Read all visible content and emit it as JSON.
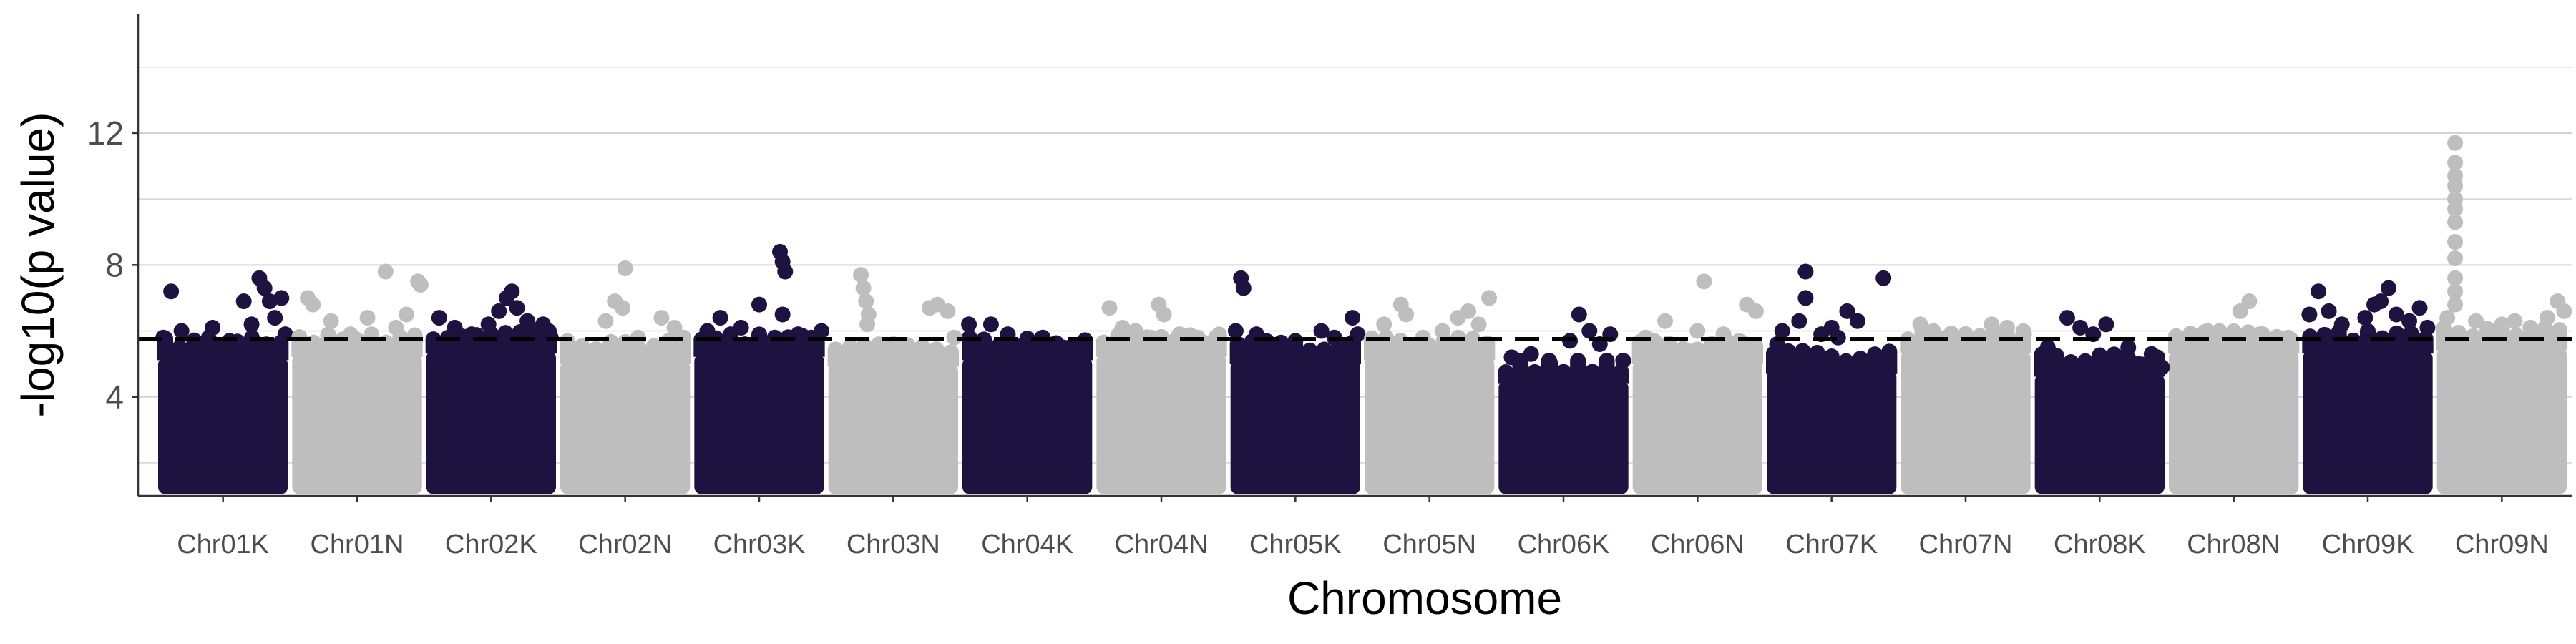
{
  "chart_data": {
    "type": "scatter",
    "title": "",
    "xlabel": "Chromosome",
    "ylabel": "-log10(p value)",
    "ylim": [
      1,
      15.6
    ],
    "yticks": [
      4,
      8,
      12
    ],
    "grid": true,
    "legend": "none",
    "threshold": 5.75,
    "colors": {
      "dark": "#1e1340",
      "light": "#bebebe",
      "threshold": "#000000"
    },
    "categories": [
      "Chr01K",
      "Chr01N",
      "Chr02K",
      "Chr02N",
      "Chr03K",
      "Chr03N",
      "Chr04K",
      "Chr04N",
      "Chr05K",
      "Chr05N",
      "Chr06K",
      "Chr06N",
      "Chr07K",
      "Chr07N",
      "Chr08K",
      "Chr08N",
      "Chr09K",
      "Chr09N"
    ],
    "series": [
      {
        "category": "Chr01K",
        "color": "dark",
        "band_top": 5.2,
        "points": [
          [
            0.04,
            5.8
          ],
          [
            0.1,
            7.2
          ],
          [
            0.18,
            6.0
          ],
          [
            0.3,
            5.6
          ],
          [
            0.42,
            6.1
          ],
          [
            0.55,
            5.7
          ],
          [
            0.66,
            6.9
          ],
          [
            0.72,
            6.2
          ],
          [
            0.78,
            7.6
          ],
          [
            0.82,
            7.3
          ],
          [
            0.86,
            6.9
          ],
          [
            0.9,
            6.4
          ],
          [
            0.95,
            7.0
          ],
          [
            0.98,
            5.9
          ]
        ]
      },
      {
        "category": "Chr01N",
        "color": "light",
        "band_top": 5.3,
        "points": [
          [
            0.12,
            7.0
          ],
          [
            0.16,
            6.8
          ],
          [
            0.3,
            6.3
          ],
          [
            0.45,
            5.9
          ],
          [
            0.58,
            6.4
          ],
          [
            0.72,
            7.8
          ],
          [
            0.8,
            6.1
          ],
          [
            0.88,
            6.5
          ],
          [
            0.97,
            7.5
          ],
          [
            0.99,
            7.4
          ]
        ]
      },
      {
        "category": "Chr02K",
        "color": "dark",
        "band_top": 5.4,
        "points": [
          [
            0.1,
            6.4
          ],
          [
            0.22,
            6.1
          ],
          [
            0.35,
            5.9
          ],
          [
            0.48,
            6.2
          ],
          [
            0.56,
            6.6
          ],
          [
            0.62,
            7.0
          ],
          [
            0.66,
            7.2
          ],
          [
            0.7,
            6.7
          ],
          [
            0.78,
            6.3
          ],
          [
            0.9,
            6.2
          ],
          [
            0.96,
            5.8
          ]
        ]
      },
      {
        "category": "Chr02N",
        "color": "light",
        "band_top": 5.1,
        "points": [
          [
            0.35,
            6.3
          ],
          [
            0.42,
            6.9
          ],
          [
            0.48,
            6.7
          ],
          [
            0.5,
            7.9
          ],
          [
            0.6,
            5.8
          ],
          [
            0.78,
            6.4
          ],
          [
            0.88,
            6.1
          ],
          [
            0.95,
            5.8
          ]
        ]
      },
      {
        "category": "Chr03K",
        "color": "dark",
        "band_top": 5.3,
        "points": [
          [
            0.1,
            6.0
          ],
          [
            0.2,
            6.4
          ],
          [
            0.28,
            5.9
          ],
          [
            0.36,
            6.1
          ],
          [
            0.5,
            6.8
          ],
          [
            0.62,
            5.8
          ],
          [
            0.66,
            8.4
          ],
          [
            0.68,
            8.1
          ],
          [
            0.7,
            7.8
          ],
          [
            0.68,
            6.5
          ],
          [
            0.8,
            5.9
          ],
          [
            0.9,
            5.8
          ],
          [
            0.98,
            6.0
          ]
        ]
      },
      {
        "category": "Chr03N",
        "color": "light",
        "band_top": 5.0,
        "points": [
          [
            0.25,
            7.7
          ],
          [
            0.27,
            7.3
          ],
          [
            0.29,
            6.9
          ],
          [
            0.31,
            6.5
          ],
          [
            0.3,
            6.2
          ],
          [
            0.5,
            5.4
          ],
          [
            0.78,
            6.7
          ],
          [
            0.84,
            6.8
          ],
          [
            0.92,
            6.6
          ],
          [
            0.97,
            5.8
          ]
        ]
      },
      {
        "category": "Chr04K",
        "color": "dark",
        "band_top": 5.2,
        "points": [
          [
            0.05,
            6.2
          ],
          [
            0.22,
            6.2
          ],
          [
            0.35,
            5.9
          ],
          [
            0.48,
            5.6
          ],
          [
            0.62,
            5.8
          ],
          [
            0.78,
            5.5
          ],
          [
            0.92,
            5.6
          ]
        ]
      },
      {
        "category": "Chr04N",
        "color": "light",
        "band_top": 5.3,
        "points": [
          [
            0.1,
            6.7
          ],
          [
            0.2,
            6.1
          ],
          [
            0.3,
            6.0
          ],
          [
            0.42,
            5.8
          ],
          [
            0.48,
            6.8
          ],
          [
            0.52,
            6.5
          ],
          [
            0.64,
            5.9
          ],
          [
            0.78,
            5.8
          ],
          [
            0.92,
            5.8
          ]
        ]
      },
      {
        "category": "Chr05K",
        "color": "dark",
        "band_top": 5.1,
        "points": [
          [
            0.08,
            7.6
          ],
          [
            0.1,
            7.3
          ],
          [
            0.04,
            6.0
          ],
          [
            0.2,
            5.9
          ],
          [
            0.3,
            5.5
          ],
          [
            0.5,
            5.7
          ],
          [
            0.7,
            6.0
          ],
          [
            0.8,
            5.8
          ],
          [
            0.94,
            6.4
          ],
          [
            0.98,
            5.9
          ]
        ]
      },
      {
        "category": "Chr05N",
        "color": "light",
        "band_top": 5.2,
        "points": [
          [
            0.15,
            6.2
          ],
          [
            0.28,
            6.8
          ],
          [
            0.32,
            6.5
          ],
          [
            0.45,
            5.8
          ],
          [
            0.6,
            6.0
          ],
          [
            0.72,
            6.4
          ],
          [
            0.8,
            6.6
          ],
          [
            0.88,
            6.2
          ],
          [
            0.96,
            7.0
          ]
        ]
      },
      {
        "category": "Chr06K",
        "color": "dark",
        "band_top": 4.5,
        "points": [
          [
            0.1,
            5.2
          ],
          [
            0.25,
            5.3
          ],
          [
            0.4,
            5.0
          ],
          [
            0.55,
            5.7
          ],
          [
            0.62,
            6.5
          ],
          [
            0.7,
            6.0
          ],
          [
            0.78,
            5.6
          ],
          [
            0.86,
            5.9
          ],
          [
            0.96,
            5.1
          ]
        ]
      },
      {
        "category": "Chr06N",
        "color": "light",
        "band_top": 5.1,
        "points": [
          [
            0.1,
            5.8
          ],
          [
            0.25,
            6.3
          ],
          [
            0.42,
            5.4
          ],
          [
            0.5,
            6.0
          ],
          [
            0.55,
            7.5
          ],
          [
            0.7,
            5.9
          ],
          [
            0.82,
            5.7
          ],
          [
            0.88,
            6.8
          ],
          [
            0.95,
            6.6
          ]
        ]
      },
      {
        "category": "Chr07K",
        "color": "dark",
        "band_top": 4.8,
        "points": [
          [
            0.08,
            5.6
          ],
          [
            0.12,
            6.0
          ],
          [
            0.25,
            6.3
          ],
          [
            0.3,
            7.0
          ],
          [
            0.3,
            7.8
          ],
          [
            0.42,
            5.9
          ],
          [
            0.5,
            6.1
          ],
          [
            0.55,
            5.8
          ],
          [
            0.62,
            6.6
          ],
          [
            0.7,
            6.3
          ],
          [
            0.9,
            7.6
          ]
        ]
      },
      {
        "category": "Chr07N",
        "color": "light",
        "band_top": 5.4,
        "points": [
          [
            0.15,
            6.2
          ],
          [
            0.25,
            6.0
          ],
          [
            0.35,
            5.8
          ],
          [
            0.5,
            5.8
          ],
          [
            0.7,
            6.2
          ],
          [
            0.82,
            6.1
          ],
          [
            0.95,
            5.9
          ]
        ]
      },
      {
        "category": "Chr08K",
        "color": "dark",
        "band_top": 4.7,
        "points": [
          [
            0.1,
            5.5
          ],
          [
            0.25,
            6.4
          ],
          [
            0.35,
            6.1
          ],
          [
            0.45,
            5.9
          ],
          [
            0.55,
            6.2
          ],
          [
            0.65,
            5.2
          ],
          [
            0.72,
            5.5
          ],
          [
            0.8,
            5.0
          ],
          [
            0.9,
            5.3
          ],
          [
            0.98,
            4.9
          ]
        ]
      },
      {
        "category": "Chr08N",
        "color": "light",
        "band_top": 5.4,
        "points": [
          [
            0.2,
            5.8
          ],
          [
            0.3,
            6.0
          ],
          [
            0.55,
            6.6
          ],
          [
            0.62,
            6.9
          ],
          [
            0.7,
            5.9
          ],
          [
            0.8,
            5.7
          ],
          [
            0.92,
            5.8
          ]
        ]
      },
      {
        "category": "Chr09K",
        "color": "dark",
        "band_top": 5.4,
        "points": [
          [
            0.05,
            6.5
          ],
          [
            0.12,
            7.2
          ],
          [
            0.2,
            6.6
          ],
          [
            0.3,
            6.2
          ],
          [
            0.48,
            6.4
          ],
          [
            0.55,
            6.8
          ],
          [
            0.6,
            6.9
          ],
          [
            0.66,
            7.3
          ],
          [
            0.72,
            6.5
          ],
          [
            0.82,
            6.3
          ],
          [
            0.9,
            6.7
          ],
          [
            0.96,
            6.1
          ]
        ]
      },
      {
        "category": "Chr09N",
        "color": "light",
        "band_top": 5.5,
        "points": [
          [
            0.08,
            6.4
          ],
          [
            0.14,
            11.7
          ],
          [
            0.14,
            11.1
          ],
          [
            0.14,
            10.7
          ],
          [
            0.14,
            10.4
          ],
          [
            0.14,
            10.0
          ],
          [
            0.14,
            9.7
          ],
          [
            0.14,
            9.3
          ],
          [
            0.14,
            8.7
          ],
          [
            0.14,
            8.2
          ],
          [
            0.14,
            7.6
          ],
          [
            0.14,
            7.2
          ],
          [
            0.14,
            6.8
          ],
          [
            0.3,
            6.3
          ],
          [
            0.5,
            6.2
          ],
          [
            0.6,
            6.3
          ],
          [
            0.72,
            6.1
          ],
          [
            0.85,
            6.4
          ],
          [
            0.93,
            6.9
          ],
          [
            0.98,
            6.6
          ]
        ]
      }
    ]
  }
}
